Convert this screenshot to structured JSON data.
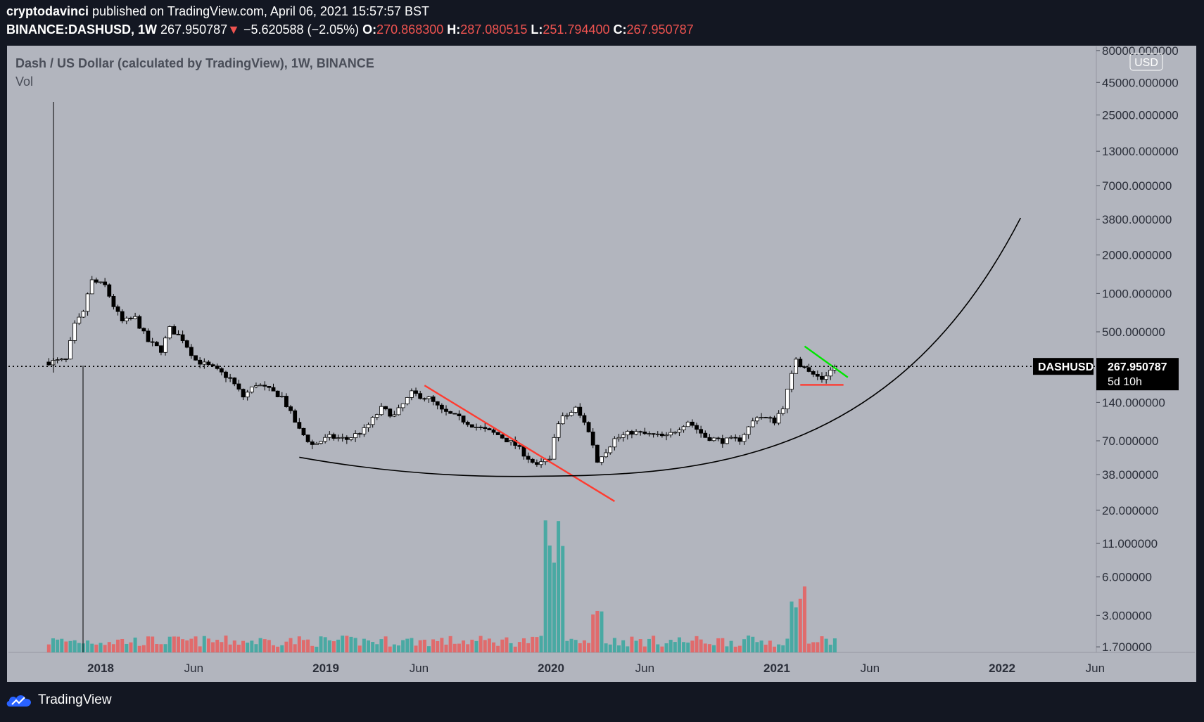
{
  "header": {
    "author": "cryptodavinci",
    "published_text": " published on TradingView.com, April 06, 2021 15:57:57 BST",
    "symbol": "BINANCE:DASHUSD, 1W",
    "last_price": "267.950787",
    "change_arrow": "▼",
    "change": "−5.620588 (−2.05%)",
    "open_label": "O:",
    "open": "270.868300",
    "high_label": "H:",
    "high": "287.080515",
    "low_label": "L:",
    "low": "251.794400",
    "close_label": "C:",
    "close": "267.950787"
  },
  "legend": {
    "title": "Dash / US Dollar (calculated by TradingView), 1W, BINANCE",
    "volume": "Vol"
  },
  "footer": {
    "brand": "TradingView"
  },
  "colors": {
    "bg": "#131722",
    "pane": "#b2b5be",
    "up": "#26a69a",
    "down": "#ef5350",
    "green_line": "#00e600",
    "red_line": "#ff3b30",
    "text": "#d1d4dc"
  },
  "chart_data": {
    "type": "candlestick",
    "symbol": "DASHUSD",
    "interval": "1W",
    "y_scale": "log",
    "currency_badge": "USD",
    "y_ticks": [
      {
        "value": 80000,
        "label": "80000.000000"
      },
      {
        "value": 45000,
        "label": "45000.000000"
      },
      {
        "value": 25000,
        "label": "25000.000000"
      },
      {
        "value": 13000,
        "label": "13000.000000"
      },
      {
        "value": 7000,
        "label": "7000.000000"
      },
      {
        "value": 3800,
        "label": "3800.000000"
      },
      {
        "value": 2000,
        "label": "2000.000000"
      },
      {
        "value": 1000,
        "label": "1000.000000"
      },
      {
        "value": 500,
        "label": "500.000000"
      },
      {
        "value": 140,
        "label": "140.000000"
      },
      {
        "value": 70,
        "label": "70.000000"
      },
      {
        "value": 38,
        "label": "38.000000"
      },
      {
        "value": 20,
        "label": "20.000000"
      },
      {
        "value": 11,
        "label": "11.000000"
      },
      {
        "value": 6,
        "label": "6.000000"
      },
      {
        "value": 3,
        "label": "3.000000"
      },
      {
        "value": 1.7,
        "label": "1.700000"
      }
    ],
    "x_ticks": [
      {
        "date": "2018-01-01",
        "label": "2018",
        "bold": true
      },
      {
        "date": "2018-06-01",
        "label": "Jun",
        "bold": false
      },
      {
        "date": "2019-01-01",
        "label": "2019",
        "bold": true
      },
      {
        "date": "2019-06-01",
        "label": "Jun",
        "bold": false
      },
      {
        "date": "2020-01-01",
        "label": "2020",
        "bold": true
      },
      {
        "date": "2020-06-01",
        "label": "Jun",
        "bold": false
      },
      {
        "date": "2021-01-01",
        "label": "2021",
        "bold": true
      },
      {
        "date": "2021-06-01",
        "label": "Jun",
        "bold": false
      },
      {
        "date": "2022-01-01",
        "label": "2022",
        "bold": true
      },
      {
        "date": "2022-06-01",
        "label": "Jun",
        "bold": false
      }
    ],
    "price_label": {
      "name": "DASHUSD",
      "value": "267.950787",
      "countdown": "5d 10h"
    },
    "current_price": 267.950787,
    "price_series_weekly_close_path": [
      [
        "2017-10-09",
        290
      ],
      [
        "2017-11-06",
        300
      ],
      [
        "2017-11-20",
        560
      ],
      [
        "2017-12-04",
        700
      ],
      [
        "2017-12-11",
        1000
      ],
      [
        "2017-12-18",
        1250
      ],
      [
        "2018-01-08",
        1150
      ],
      [
        "2018-01-22",
        800
      ],
      [
        "2018-02-05",
        600
      ],
      [
        "2018-02-26",
        640
      ],
      [
        "2018-03-19",
        420
      ],
      [
        "2018-04-09",
        360
      ],
      [
        "2018-04-23",
        530
      ],
      [
        "2018-05-14",
        440
      ],
      [
        "2018-06-04",
        300
      ],
      [
        "2018-07-02",
        260
      ],
      [
        "2018-07-30",
        215
      ],
      [
        "2018-08-20",
        155
      ],
      [
        "2018-09-10",
        195
      ],
      [
        "2018-10-01",
        175
      ],
      [
        "2018-10-22",
        155
      ],
      [
        "2018-11-19",
        85
      ],
      [
        "2018-12-10",
        65
      ],
      [
        "2019-01-07",
        75
      ],
      [
        "2019-02-04",
        72
      ],
      [
        "2019-03-04",
        85
      ],
      [
        "2019-04-01",
        125
      ],
      [
        "2019-04-22",
        110
      ],
      [
        "2019-05-20",
        165
      ],
      [
        "2019-06-17",
        150
      ],
      [
        "2019-07-08",
        120
      ],
      [
        "2019-08-05",
        105
      ],
      [
        "2019-09-02",
        90
      ],
      [
        "2019-10-07",
        78
      ],
      [
        "2019-11-04",
        65
      ],
      [
        "2019-12-09",
        44
      ],
      [
        "2019-12-30",
        52
      ],
      [
        "2020-01-13",
        100
      ],
      [
        "2020-02-10",
        125
      ],
      [
        "2020-03-02",
        85
      ],
      [
        "2020-03-16",
        48
      ],
      [
        "2020-04-13",
        72
      ],
      [
        "2020-05-11",
        82
      ],
      [
        "2020-06-08",
        78
      ],
      [
        "2020-07-06",
        75
      ],
      [
        "2020-08-10",
        100
      ],
      [
        "2020-09-07",
        75
      ],
      [
        "2020-10-05",
        70
      ],
      [
        "2020-11-02",
        72
      ],
      [
        "2020-11-30",
        110
      ],
      [
        "2020-12-28",
        100
      ],
      [
        "2021-01-11",
        130
      ],
      [
        "2021-02-01",
        300
      ],
      [
        "2021-02-22",
        240
      ],
      [
        "2021-03-15",
        215
      ],
      [
        "2021-04-05",
        268
      ]
    ],
    "volume_notes": {
      "peak_date": "2020-01-13"
    },
    "annotations": [
      {
        "type": "trendline",
        "color": "#ff3b30",
        "from": [
          "2019-06-10",
          190
        ],
        "to": [
          "2020-04-13",
          23.5
        ]
      },
      {
        "type": "trendline",
        "color": "#00e600",
        "from": [
          "2021-02-15",
          385
        ],
        "to": [
          "2021-04-26",
          220
        ]
      },
      {
        "type": "horizontal_segment",
        "color": "#ff3b30",
        "from": [
          "2021-02-08",
          192
        ],
        "to": [
          "2021-04-19",
          192
        ]
      },
      {
        "type": "curve",
        "color": "#000000",
        "description": "rounded bottom arc",
        "from": [
          "2018-11-19",
          52
        ],
        "bottom": [
          "2019-12-16",
          37
        ],
        "to": [
          "2022-01-31",
          3900
        ]
      }
    ]
  }
}
